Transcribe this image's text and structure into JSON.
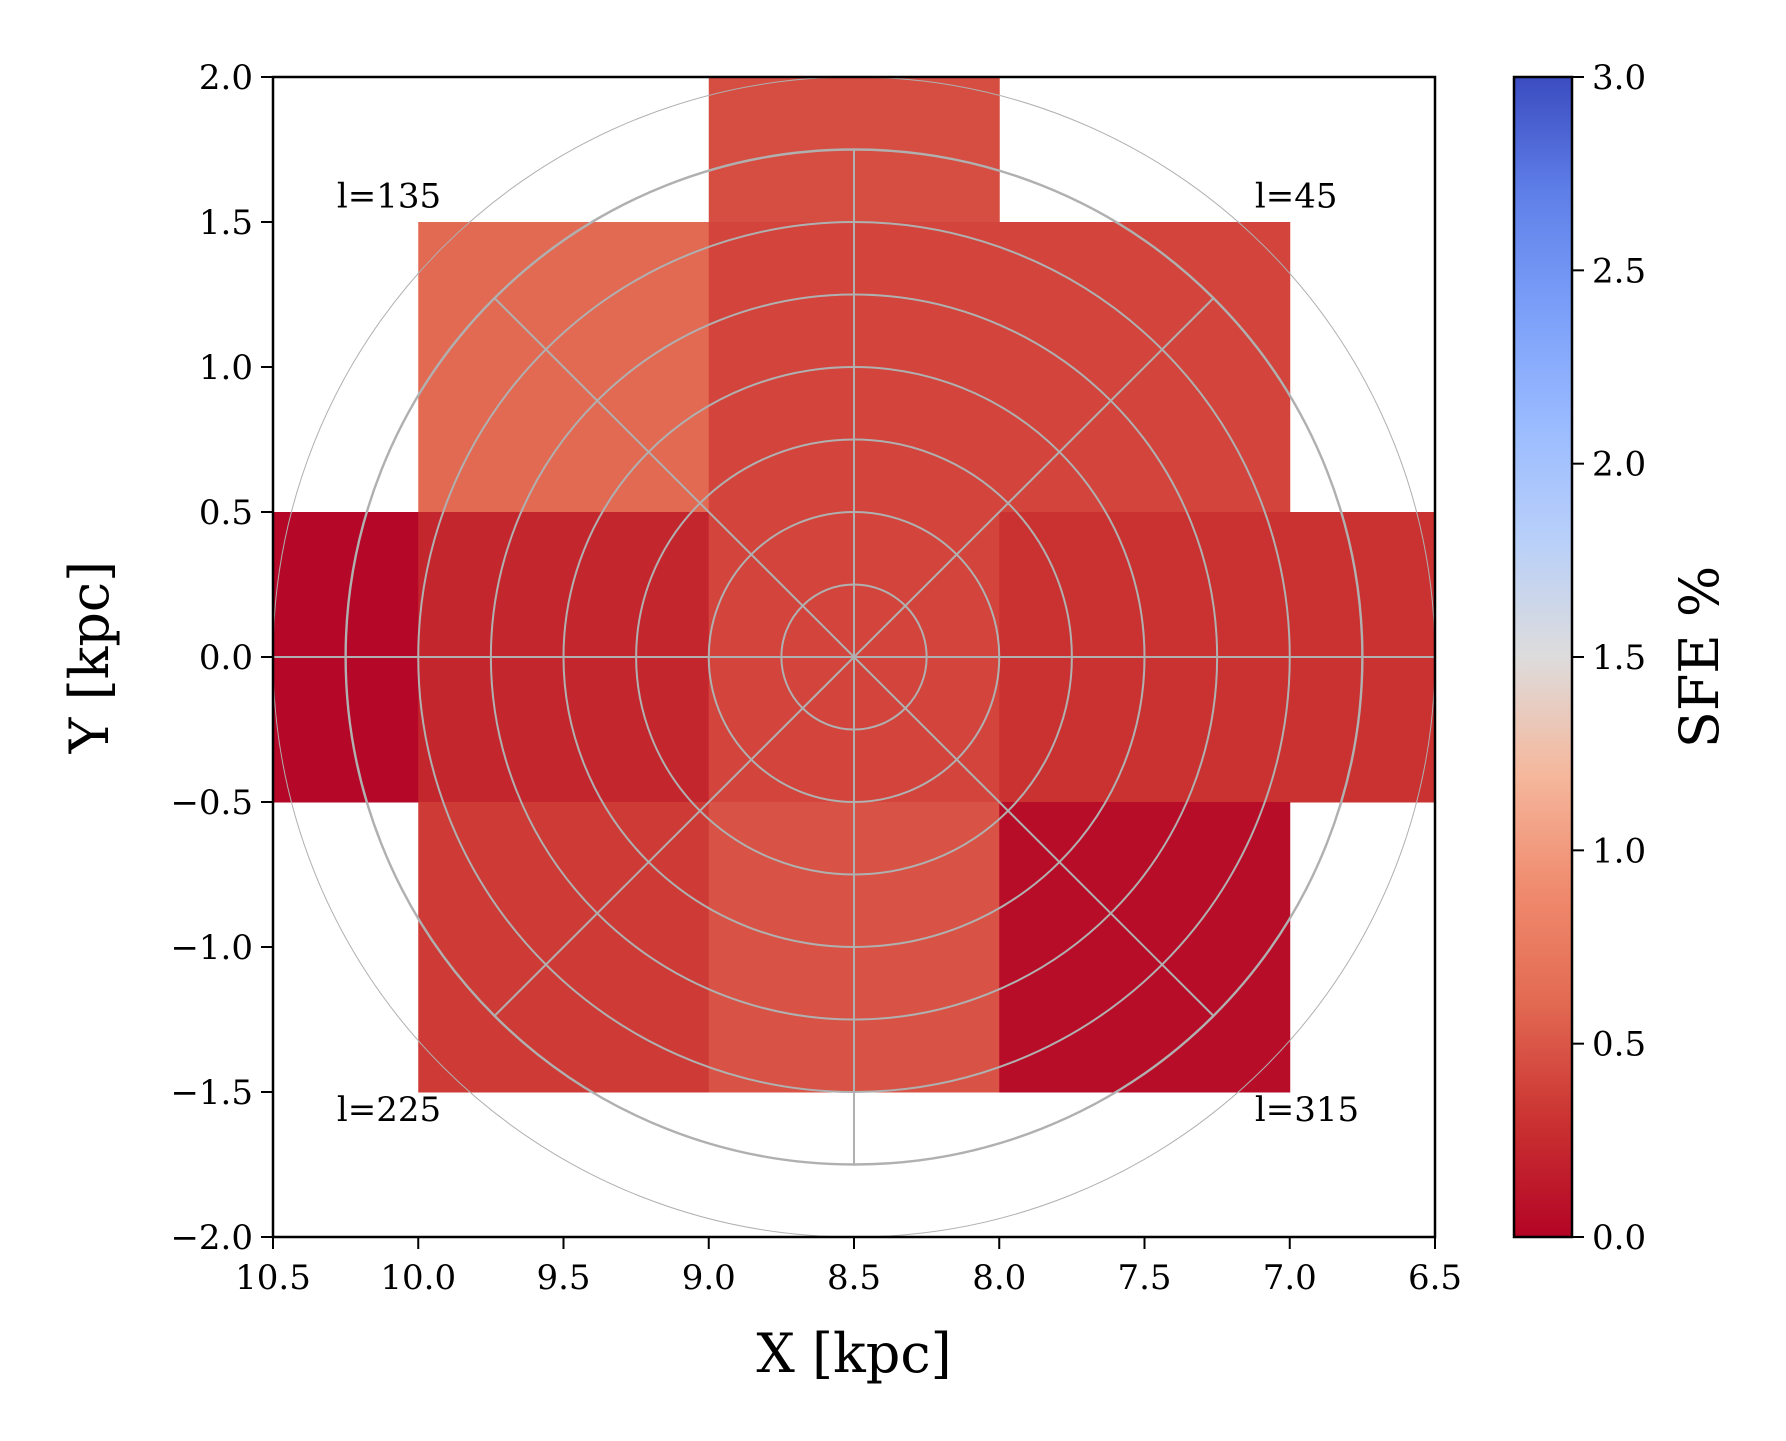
{
  "chart_data": {
    "type": "heatmap",
    "xlabel": "X [kpc]",
    "ylabel": "Y [kpc]",
    "xlim": [
      10.5,
      6.5
    ],
    "ylim": [
      -2.0,
      2.0
    ],
    "x_inverted": true,
    "xticks": [
      "10.5",
      "10.0",
      "9.5",
      "9.0",
      "8.5",
      "8.0",
      "7.5",
      "7.0",
      "6.5"
    ],
    "xtick_values": [
      10.5,
      10.0,
      9.5,
      9.0,
      8.5,
      8.0,
      7.5,
      7.0,
      6.5
    ],
    "yticks": [
      "2.0",
      "1.5",
      "1.0",
      "0.5",
      "0.0",
      "−0.5",
      "−1.0",
      "−1.5",
      "−2.0"
    ],
    "ytick_values": [
      2.0,
      1.5,
      1.0,
      0.5,
      0.0,
      -0.5,
      -1.0,
      -1.5,
      -2.0
    ],
    "colorbar": {
      "label": "SFE %",
      "colormap": "coolwarm_r",
      "range": [
        0.0,
        3.0
      ],
      "ticks": [
        "0.0",
        "0.5",
        "1.0",
        "1.5",
        "2.0",
        "2.5",
        "3.0"
      ],
      "tick_values": [
        0.0,
        0.5,
        1.0,
        1.5,
        2.0,
        2.5,
        3.0
      ]
    },
    "cells": [
      {
        "x0": 9.0,
        "x1": 8.0,
        "y0": 1.5,
        "y1": 2.0,
        "value": 0.45
      },
      {
        "x0": 10.0,
        "x1": 9.0,
        "y0": 0.5,
        "y1": 1.5,
        "value": 0.6
      },
      {
        "x0": 9.0,
        "x1": 8.0,
        "y0": 0.5,
        "y1": 1.5,
        "value": 0.4
      },
      {
        "x0": 8.0,
        "x1": 7.0,
        "y0": 0.5,
        "y1": 1.5,
        "value": 0.4
      },
      {
        "x0": 10.5,
        "x1": 10.0,
        "y0": -0.5,
        "y1": 0.5,
        "value": 0.02
      },
      {
        "x0": 10.0,
        "x1": 9.0,
        "y0": -0.5,
        "y1": 0.5,
        "value": 0.22
      },
      {
        "x0": 9.0,
        "x1": 8.0,
        "y0": -0.5,
        "y1": 0.5,
        "value": 0.4
      },
      {
        "x0": 8.0,
        "x1": 6.5,
        "y0": -0.5,
        "y1": 0.5,
        "value": 0.3
      },
      {
        "x0": 10.0,
        "x1": 9.0,
        "y0": -1.5,
        "y1": -0.5,
        "value": 0.35
      },
      {
        "x0": 9.0,
        "x1": 8.0,
        "y0": -1.5,
        "y1": -0.5,
        "value": 0.48
      },
      {
        "x0": 8.0,
        "x1": 7.0,
        "y0": -1.5,
        "y1": -0.5,
        "value": 0.06
      }
    ],
    "polar_grid": {
      "center": [
        8.5,
        0.0
      ],
      "radii_kpc": [
        0.25,
        0.5,
        0.75,
        1.0,
        1.25,
        1.5,
        1.75
      ],
      "outer_radius_kpc": 2.0,
      "spoke_angles_deg": [
        0,
        45,
        90,
        135,
        180,
        225,
        270,
        315
      ]
    },
    "annotations": [
      {
        "text": "l=135",
        "x": 10.28,
        "y": 1.55
      },
      {
        "text": "l=45",
        "x": 7.12,
        "y": 1.55
      },
      {
        "text": "l=225",
        "x": 10.28,
        "y": -1.6
      },
      {
        "text": "l=315",
        "x": 7.12,
        "y": -1.6
      }
    ]
  }
}
